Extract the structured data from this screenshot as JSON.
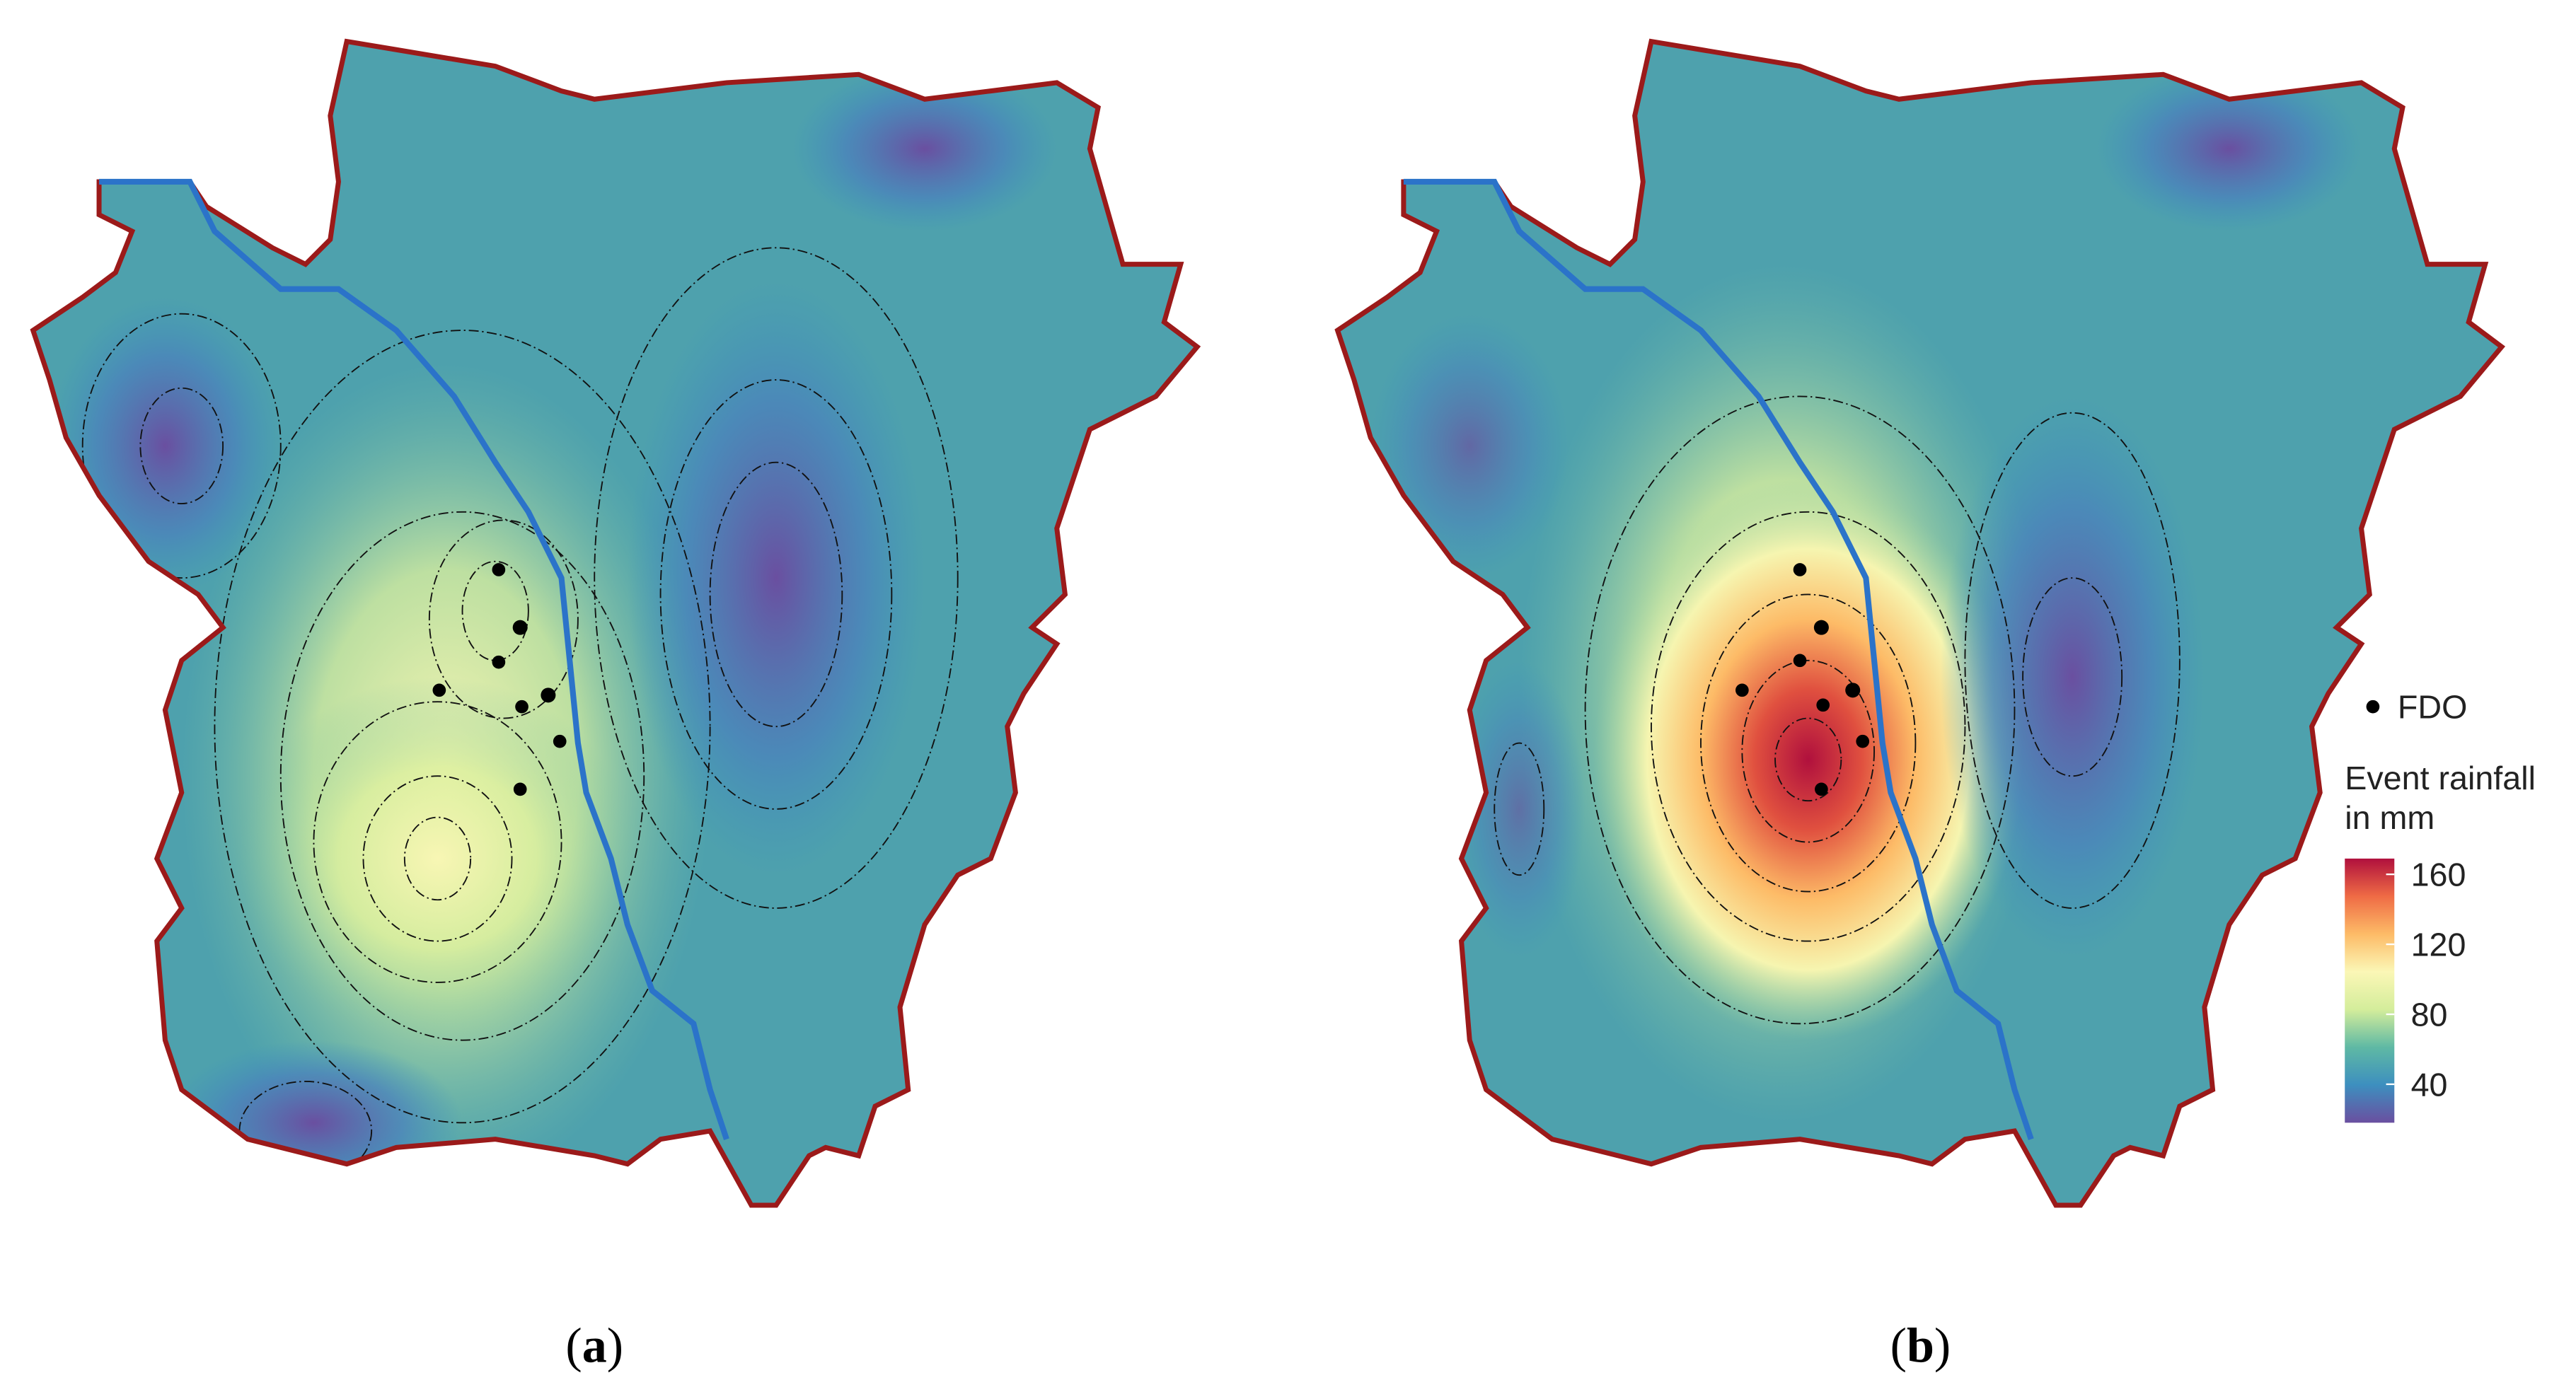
{
  "panels": [
    {
      "label": "(a)"
    },
    {
      "label": "(b)"
    }
  ],
  "legend": {
    "marker_label": "FDO",
    "title": [
      "Event rainfall",
      "in mm"
    ],
    "colorbar": {
      "lim": [
        18,
        169
      ],
      "ticks": [
        40,
        80,
        120,
        160
      ],
      "colors": [
        "#6a4fa0",
        "#3d8fbf",
        "#5fb9a4",
        "#d4ed9b",
        "#fbf7b6",
        "#fdbb67",
        "#ef6b45",
        "#b0103d"
      ]
    }
  }
}
